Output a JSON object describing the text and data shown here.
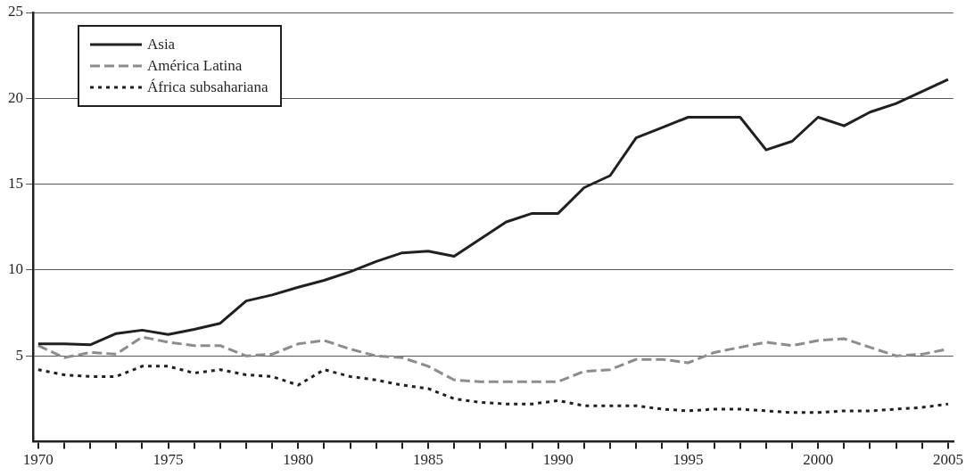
{
  "chart_data": {
    "type": "line",
    "x": [
      1970,
      1971,
      1972,
      1973,
      1974,
      1975,
      1976,
      1977,
      1978,
      1979,
      1980,
      1981,
      1982,
      1983,
      1984,
      1985,
      1986,
      1987,
      1988,
      1989,
      1990,
      1991,
      1992,
      1993,
      1994,
      1995,
      1996,
      1997,
      1998,
      1999,
      2000,
      2001,
      2002,
      2003,
      2004,
      2005
    ],
    "series": [
      {
        "name": "Asia",
        "color": "#231f20",
        "line_style": "solid",
        "values": [
          5.7,
          5.7,
          5.65,
          6.3,
          6.5,
          6.25,
          6.55,
          6.9,
          8.2,
          8.55,
          9.0,
          9.4,
          9.9,
          10.5,
          11.0,
          11.1,
          10.8,
          11.8,
          12.8,
          13.3,
          13.3,
          14.8,
          15.5,
          17.7,
          18.3,
          18.9,
          18.9,
          18.9,
          17.0,
          17.5,
          18.9,
          18.4,
          19.2,
          19.7,
          20.4,
          21.1
        ]
      },
      {
        "name": "América Latina",
        "color": "#8c8c8c",
        "line_style": "dashed",
        "values": [
          5.6,
          4.9,
          5.2,
          5.1,
          6.1,
          5.8,
          5.6,
          5.6,
          5.0,
          5.1,
          5.7,
          5.9,
          5.4,
          5.0,
          4.9,
          4.4,
          3.6,
          3.5,
          3.5,
          3.5,
          3.5,
          4.1,
          4.2,
          4.8,
          4.8,
          4.6,
          5.2,
          5.5,
          5.8,
          5.6,
          5.9,
          6.0,
          5.5,
          5.0,
          5.1,
          5.4
        ]
      },
      {
        "name": "África subsahariana",
        "color": "#231f20",
        "line_style": "dotted",
        "values": [
          4.2,
          3.9,
          3.8,
          3.8,
          4.4,
          4.4,
          4.0,
          4.2,
          3.9,
          3.8,
          3.3,
          4.2,
          3.8,
          3.6,
          3.3,
          3.1,
          2.5,
          2.3,
          2.2,
          2.2,
          2.4,
          2.1,
          2.1,
          2.1,
          1.9,
          1.8,
          1.9,
          1.9,
          1.8,
          1.7,
          1.7,
          1.8,
          1.8,
          1.9,
          2.0,
          2.2
        ]
      }
    ],
    "xlim": [
      1969.8,
      2005.2
    ],
    "xticks": [
      1970,
      {
        "value": 1971,
        "label": null
      },
      {
        "value": 1972,
        "label": null
      },
      {
        "value": 1973,
        "label": null
      },
      {
        "value": 1974,
        "label": null
      },
      1975,
      {
        "value": 1976,
        "label": null
      },
      {
        "value": 1977,
        "label": null
      },
      {
        "value": 1978,
        "label": null
      },
      {
        "value": 1979,
        "label": null
      },
      1980,
      {
        "value": 1981,
        "label": null
      },
      {
        "value": 1982,
        "label": null
      },
      {
        "value": 1983,
        "label": null
      },
      {
        "value": 1984,
        "label": null
      },
      1985,
      {
        "value": 1986,
        "label": null
      },
      {
        "value": 1987,
        "label": null
      },
      {
        "value": 1988,
        "label": null
      },
      {
        "value": 1989,
        "label": null
      },
      1990,
      {
        "value": 1991,
        "label": null
      },
      {
        "value": 1992,
        "label": null
      },
      {
        "value": 1993,
        "label": null
      },
      {
        "value": 1994,
        "label": null
      },
      1995,
      {
        "value": 1996,
        "label": null
      },
      {
        "value": 1997,
        "label": null
      },
      {
        "value": 1998,
        "label": null
      },
      {
        "value": 1999,
        "label": null
      },
      2000,
      {
        "value": 2001,
        "label": null
      },
      {
        "value": 2002,
        "label": null
      },
      {
        "value": 2003,
        "label": null
      },
      {
        "value": 2004,
        "label": null
      },
      2005
    ],
    "ylim": [
      0,
      25
    ],
    "yticks": [
      5,
      10,
      15,
      20,
      25
    ],
    "grid": "y",
    "legend": "top left",
    "marker": "none"
  }
}
